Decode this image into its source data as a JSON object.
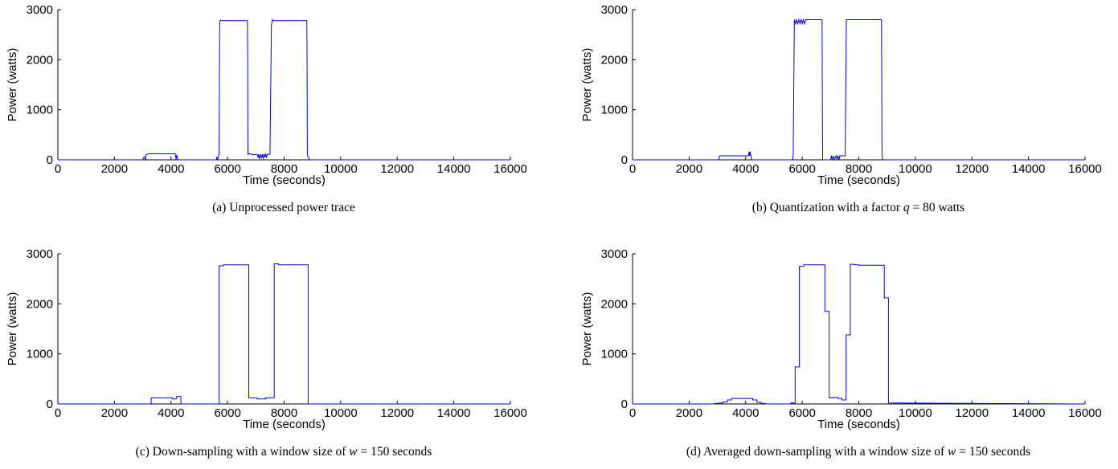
{
  "chart_data": [
    {
      "type": "line",
      "caption": "(a) Unprocessed power trace",
      "caption_parts": [
        {
          "text": "(a) Unprocessed power trace",
          "italic": false
        }
      ],
      "xlabel": "Time (seconds)",
      "ylabel": "Power (watts)",
      "xlim": [
        0,
        16000
      ],
      "ylim": [
        0,
        3000
      ],
      "xticks": [
        0,
        2000,
        4000,
        6000,
        8000,
        10000,
        12000,
        14000,
        16000
      ],
      "yticks": [
        0,
        1000,
        2000,
        3000
      ],
      "grid": false,
      "series": [
        {
          "color": "#0000ff",
          "x": [
            0,
            3000,
            3050,
            3100,
            3120,
            3200,
            4150,
            4180,
            4200,
            4250,
            5600,
            5620,
            5650,
            5680,
            5700,
            5720,
            5750,
            5770,
            6700,
            6710,
            6720,
            6740,
            6800,
            6900,
            7000,
            7050,
            7080,
            7100,
            7130,
            7160,
            7200,
            7230,
            7260,
            7290,
            7320,
            7350,
            7380,
            7400,
            7500,
            7550,
            7590,
            7600,
            7620,
            7640,
            8800,
            8810,
            8820,
            8840,
            8880,
            8900,
            9000,
            16000
          ],
          "y": [
            0,
            0,
            60,
            0,
            100,
            120,
            120,
            0,
            100,
            0,
            0,
            60,
            0,
            80,
            100,
            2760,
            2790,
            2780,
            2780,
            2200,
            100,
            120,
            120,
            100,
            110,
            100,
            40,
            110,
            20,
            110,
            40,
            110,
            20,
            110,
            60,
            110,
            40,
            110,
            110,
            2700,
            2800,
            2790,
            2780,
            2780,
            2780,
            2200,
            100,
            60,
            40,
            0,
            0,
            0
          ]
        }
      ]
    },
    {
      "type": "line",
      "caption": "(b) Quantization with a factor q = 80 watts",
      "caption_parts": [
        {
          "text": "(b) Quantization with a factor ",
          "italic": false
        },
        {
          "text": "q",
          "italic": true
        },
        {
          "text": " = 80 watts",
          "italic": false
        }
      ],
      "xlabel": "Time (seconds)",
      "ylabel": "Power (watts)",
      "xlim": [
        0,
        16000
      ],
      "ylim": [
        0,
        3000
      ],
      "xticks": [
        0,
        2000,
        4000,
        6000,
        8000,
        10000,
        12000,
        14000,
        16000
      ],
      "yticks": [
        0,
        1000,
        2000,
        3000
      ],
      "grid": false,
      "series": [
        {
          "color": "#0000ff",
          "x": [
            0,
            3050,
            3080,
            3200,
            4100,
            4120,
            4140,
            4160,
            4180,
            4220,
            4250,
            5650,
            5680,
            5720,
            5760,
            5800,
            5840,
            5880,
            5920,
            5960,
            6000,
            6040,
            6080,
            6120,
            6700,
            6720,
            7000,
            7030,
            7060,
            7100,
            7130,
            7200,
            7230,
            7260,
            7300,
            7330,
            7400,
            7520,
            7560,
            8800,
            8820,
            8850,
            8880,
            16000
          ],
          "y": [
            0,
            0,
            80,
            80,
            80,
            160,
            80,
            160,
            80,
            0,
            0,
            0,
            80,
            2800,
            2720,
            2800,
            2720,
            2800,
            2720,
            2800,
            2720,
            2800,
            2720,
            2800,
            2800,
            0,
            0,
            80,
            0,
            80,
            0,
            80,
            0,
            80,
            0,
            80,
            80,
            80,
            2800,
            2800,
            80,
            0,
            0,
            0
          ]
        }
      ]
    },
    {
      "type": "line",
      "caption": "(c) Down-sampling with a window size of w = 150 seconds",
      "caption_parts": [
        {
          "text": "(c) Down-sampling with a window size of ",
          "italic": false
        },
        {
          "text": "w",
          "italic": true
        },
        {
          "text": " = 150 seconds",
          "italic": false
        }
      ],
      "xlabel": "Time (seconds)",
      "ylabel": "Power (watts)",
      "xlim": [
        0,
        16000
      ],
      "ylim": [
        0,
        3000
      ],
      "xticks": [
        0,
        2000,
        4000,
        6000,
        8000,
        10000,
        12000,
        14000,
        16000
      ],
      "yticks": [
        0,
        1000,
        2000,
        3000
      ],
      "grid": false,
      "series": [
        {
          "color": "#0000ff",
          "x": [
            0,
            3300,
            3300,
            4050,
            4050,
            4200,
            4200,
            4350,
            4350,
            5700,
            5700,
            5850,
            5850,
            6750,
            6750,
            7050,
            7050,
            7350,
            7350,
            7650,
            7650,
            7800,
            7800,
            8850,
            8850,
            9000,
            9000,
            16000
          ],
          "y": [
            0,
            0,
            120,
            120,
            100,
            100,
            150,
            150,
            0,
            0,
            2760,
            2760,
            2780,
            2780,
            120,
            120,
            100,
            100,
            120,
            120,
            2800,
            2800,
            2780,
            2780,
            0,
            0,
            0,
            0
          ]
        }
      ]
    },
    {
      "type": "line",
      "caption": "(d) Averaged down-sampling with a window size of w = 150 seconds",
      "caption_parts": [
        {
          "text": "(d) Averaged down-sampling with a window size of ",
          "italic": false
        },
        {
          "text": "w",
          "italic": true
        },
        {
          "text": " = 150 seconds",
          "italic": false
        }
      ],
      "xlabel": "Time (seconds)",
      "ylabel": "Power (watts)",
      "xlim": [
        0,
        16000
      ],
      "ylim": [
        0,
        3000
      ],
      "xticks": [
        0,
        2000,
        4000,
        6000,
        8000,
        10000,
        12000,
        14000,
        16000
      ],
      "yticks": [
        0,
        1000,
        2000,
        3000
      ],
      "grid": false,
      "series": [
        {
          "color": "#0000ff",
          "x": [
            0,
            2900,
            2900,
            3050,
            3050,
            3200,
            3200,
            3350,
            3350,
            3500,
            3500,
            4250,
            4250,
            4400,
            4400,
            4550,
            4550,
            4700,
            4700,
            5600,
            5600,
            5750,
            5750,
            5900,
            5900,
            6050,
            6050,
            6800,
            6800,
            6950,
            6950,
            7100,
            7100,
            7250,
            7250,
            7400,
            7400,
            7550,
            7550,
            7700,
            7700,
            7850,
            7850,
            8000,
            8000,
            8900,
            8900,
            9050,
            9050,
            16000
          ],
          "y": [
            0,
            0,
            10,
            10,
            20,
            20,
            40,
            40,
            80,
            80,
            110,
            110,
            80,
            80,
            30,
            30,
            10,
            10,
            0,
            0,
            20,
            20,
            740,
            740,
            2750,
            2750,
            2780,
            2780,
            1850,
            1850,
            120,
            120,
            130,
            130,
            110,
            110,
            80,
            80,
            1380,
            1380,
            2790,
            2790,
            2780,
            2780,
            2770,
            2770,
            2120,
            2120,
            20,
            0
          ]
        }
      ]
    }
  ]
}
